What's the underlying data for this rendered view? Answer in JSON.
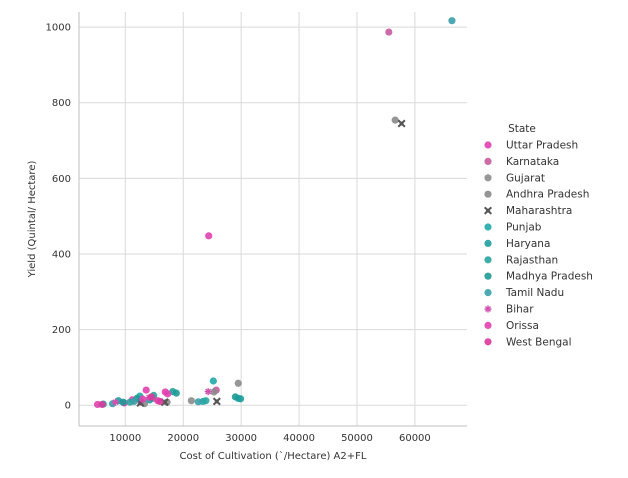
{
  "chart_data": {
    "type": "scatter",
    "title": "",
    "xlabel": "Cost of Cultivation (`/Hectare) A2+FL",
    "ylabel": "Yield (Quintal/ Hectare)",
    "xlim": [
      2000,
      69000
    ],
    "ylim": [
      -55,
      1040
    ],
    "xticks": [
      10000,
      20000,
      30000,
      40000,
      50000,
      60000
    ],
    "yticks": [
      0,
      200,
      400,
      600,
      800,
      1000
    ],
    "grid": true,
    "legend_position": "right",
    "legend_title": "State",
    "series": [
      {
        "name": "Uttar Pradesh",
        "color": "#e040b0",
        "marker": "circle",
        "points": [
          [
            24400,
            448
          ],
          [
            13600,
            40
          ],
          [
            16900,
            35
          ],
          [
            5200,
            2
          ],
          [
            9800,
            6
          ],
          [
            11200,
            14
          ]
        ]
      },
      {
        "name": "Karnataka",
        "color": "#c75b9e",
        "marker": "circle",
        "points": [
          [
            55500,
            987
          ],
          [
            25700,
            40
          ],
          [
            14800,
            18
          ],
          [
            12700,
            8
          ]
        ]
      },
      {
        "name": "Gujarat",
        "color": "#8c8c8c",
        "marker": "circle",
        "points": [
          [
            29500,
            58
          ],
          [
            21400,
            12
          ],
          [
            13300,
            4
          ]
        ]
      },
      {
        "name": "Andhra Pradesh",
        "color": "#8a8a8a",
        "marker": "circle",
        "points": [
          [
            56600,
            754
          ],
          [
            25300,
            35
          ],
          [
            17200,
            8
          ]
        ]
      },
      {
        "name": "Maharashtra",
        "color": "#555555",
        "marker": "x",
        "points": [
          [
            57700,
            745
          ],
          [
            25800,
            10
          ],
          [
            12600,
            6
          ],
          [
            16800,
            8
          ]
        ]
      },
      {
        "name": "Punjab",
        "color": "#22a8a8",
        "marker": "circle",
        "points": [
          [
            25200,
            64
          ],
          [
            29500,
            18
          ],
          [
            23400,
            10
          ],
          [
            12500,
            24
          ]
        ]
      },
      {
        "name": "Haryana",
        "color": "#1f9e9e",
        "marker": "circle",
        "points": [
          [
            29900,
            17
          ],
          [
            18200,
            36
          ],
          [
            14200,
            14
          ],
          [
            8800,
            12
          ]
        ]
      },
      {
        "name": "Rajasthan",
        "color": "#2aa5a0",
        "marker": "circle",
        "points": [
          [
            23900,
            12
          ],
          [
            10800,
            8
          ],
          [
            6200,
            3
          ],
          [
            14900,
            26
          ]
        ]
      },
      {
        "name": "Madhya Pradesh",
        "color": "#1d9a95",
        "marker": "circle",
        "points": [
          [
            29000,
            22
          ],
          [
            18800,
            32
          ],
          [
            12000,
            18
          ],
          [
            9600,
            8
          ]
        ]
      },
      {
        "name": "Tamil Nadu",
        "color": "#38a0a8",
        "marker": "circle",
        "points": [
          [
            66400,
            1017
          ],
          [
            22600,
            9
          ],
          [
            11500,
            10
          ],
          [
            7800,
            4
          ]
        ]
      },
      {
        "name": "Bihar",
        "color": "#d44fb0",
        "marker": "asterisk",
        "points": [
          [
            24300,
            36
          ],
          [
            14100,
            20
          ],
          [
            8300,
            8
          ]
        ]
      },
      {
        "name": "Orissa",
        "color": "#e040b0",
        "marker": "circle",
        "points": [
          [
            15600,
            12
          ],
          [
            17300,
            30
          ],
          [
            13000,
            16
          ]
        ]
      },
      {
        "name": "West Bengal",
        "color": "#d93a9c",
        "marker": "circle",
        "points": [
          [
            14500,
            22
          ],
          [
            16000,
            10
          ],
          [
            6000,
            2
          ]
        ]
      }
    ]
  }
}
